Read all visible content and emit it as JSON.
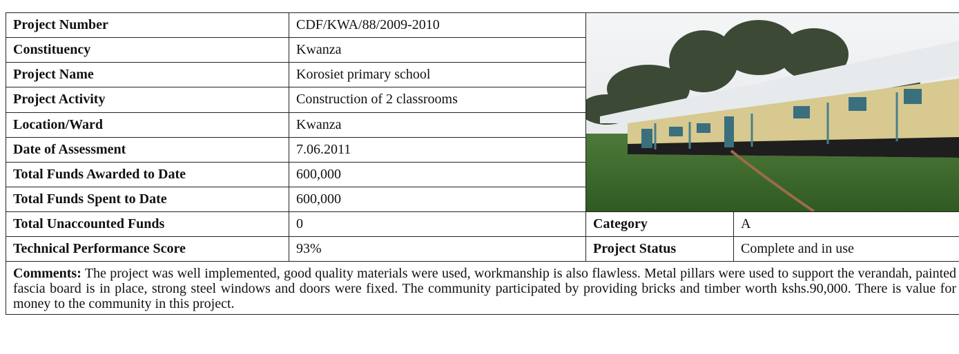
{
  "table": {
    "rows": [
      [
        "Project Number",
        "CDF/KWA/88/2009-2010"
      ],
      [
        "Constituency",
        "Kwanza"
      ],
      [
        "Project Name",
        "Korosiet primary school"
      ],
      [
        "Project Activity",
        "Construction of 2 classrooms"
      ],
      [
        "Location/Ward",
        "Kwanza"
      ],
      [
        "Date of Assessment",
        "7.06.2011"
      ],
      [
        "Total Funds Awarded to Date",
        "600,000"
      ],
      [
        "Total Funds Spent to Date",
        "600,000"
      ],
      [
        "Total Unaccounted Funds",
        "0"
      ],
      [
        "Technical Performance Score",
        "93%"
      ]
    ],
    "side": [
      [
        "Category",
        "A"
      ],
      [
        "Project Status",
        "Complete and in use"
      ]
    ]
  },
  "comments": {
    "label": "Comments:",
    "text": "The project was well implemented, good quality materials were used, workmanship is also flawless. Metal pillars were  used to support the verandah, painted fascia board is in place, strong steel windows and doors were fixed. The community participated by providing bricks and timber worth kshs.90,000. There is value for money to the community in this project."
  }
}
